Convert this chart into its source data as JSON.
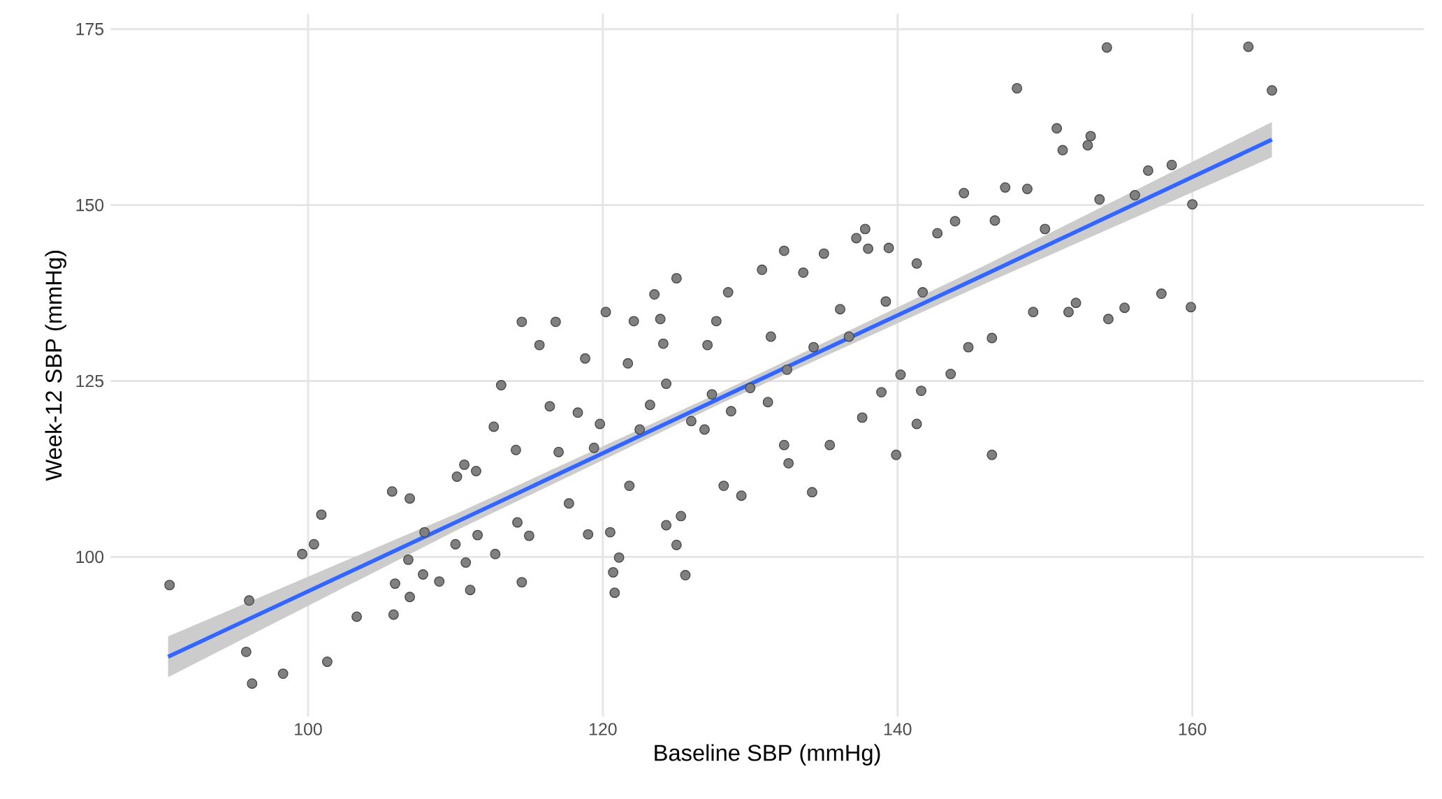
{
  "chart_data": {
    "type": "scatter",
    "xlabel": "Baseline SBP (mmHg)",
    "ylabel": "Week-12 SBP (mmHg)",
    "xlim": [
      86.6,
      175.7
    ],
    "ylim": [
      77.3,
      177.2
    ],
    "xticks": [
      100,
      120,
      140,
      160
    ],
    "yticks": [
      100,
      125,
      150,
      175
    ],
    "grid": true,
    "series": [
      {
        "marker": "circle",
        "color": "#808080",
        "x": [
          90.6,
          96.0,
          95.8,
          96.2,
          98.3,
          99.6,
          100.4,
          100.9,
          101.3,
          103.3,
          105.7,
          105.8,
          105.9,
          106.9,
          106.8,
          106.9,
          107.8,
          107.9,
          108.9,
          110.0,
          110.1,
          110.6,
          110.7,
          111.0,
          111.4,
          111.5,
          112.6,
          112.7,
          113.1,
          114.2,
          114.5,
          114.5,
          114.1,
          115.0,
          115.7,
          116.8,
          116.4,
          117.7,
          118.8,
          118.3,
          119.0,
          119.8,
          120.2,
          120.5,
          120.7,
          120.8,
          121.1,
          122.1,
          121.7,
          121.8,
          123.5,
          123.9,
          124.1,
          124.3,
          124.3,
          125.0,
          125.0,
          125.3,
          125.6,
          127.1,
          127.4,
          127.7,
          128.5,
          128.2,
          129.4,
          130.8,
          131.4,
          132.3,
          132.3,
          132.6,
          133.6,
          134.2,
          135.0,
          135.4,
          136.1,
          137.2,
          137.8,
          138.0,
          137.6,
          138.9,
          139.4,
          139.9,
          140.2,
          141.3,
          141.3,
          141.6,
          142.7,
          143.6,
          143.9,
          144.5,
          144.8,
          146.4,
          146.4,
          146.6,
          147.3,
          148.1,
          148.8,
          149.2,
          150.0,
          150.8,
          151.2,
          151.6,
          152.1,
          152.9,
          153.1,
          153.7,
          154.2,
          154.3,
          155.4,
          156.1,
          157.0,
          157.9,
          158.6,
          160.0,
          159.9,
          163.8,
          165.4,
          123.2,
          126.0,
          126.9,
          130.0,
          132.5,
          134.3,
          136.7,
          139.2,
          141.7,
          119.4,
          117.0,
          122.5,
          128.7,
          131.2
        ],
        "values": [
          96.0,
          93.8,
          86.5,
          82.0,
          83.4,
          100.4,
          101.8,
          106.0,
          85.1,
          91.5,
          109.3,
          91.8,
          96.2,
          108.3,
          99.6,
          94.3,
          97.5,
          103.5,
          96.5,
          101.8,
          111.4,
          113.1,
          99.2,
          95.3,
          112.2,
          103.1,
          118.5,
          100.4,
          124.4,
          104.9,
          133.4,
          96.4,
          115.2,
          103.0,
          130.1,
          133.4,
          121.4,
          107.6,
          128.2,
          120.5,
          103.2,
          118.9,
          134.8,
          103.5,
          97.8,
          94.9,
          99.9,
          133.5,
          127.5,
          110.1,
          137.3,
          133.8,
          130.3,
          124.6,
          104.5,
          139.6,
          101.7,
          105.8,
          97.4,
          130.1,
          123.1,
          133.5,
          137.6,
          110.1,
          108.7,
          140.8,
          131.3,
          143.5,
          115.9,
          113.3,
          140.4,
          109.2,
          143.1,
          115.9,
          135.2,
          145.3,
          146.6,
          143.8,
          119.8,
          123.4,
          143.9,
          114.5,
          125.9,
          141.7,
          118.9,
          123.6,
          146.0,
          126.0,
          147.7,
          151.7,
          129.8,
          114.5,
          131.1,
          147.8,
          152.5,
          166.6,
          152.3,
          134.8,
          146.6,
          160.9,
          157.8,
          134.8,
          136.1,
          158.5,
          159.8,
          150.8,
          172.4,
          133.8,
          135.4,
          151.4,
          154.9,
          137.4,
          155.7,
          150.1,
          135.5,
          172.5,
          166.3,
          121.6,
          119.3,
          118.1,
          124.0,
          126.6,
          129.8,
          131.3,
          136.3,
          137.6,
          115.5,
          114.9,
          118.1,
          120.7,
          122.0
        ]
      },
      {
        "type": "line",
        "color": "#3366ff",
        "x": [
          90.5,
          110,
          128,
          146,
          165.4
        ],
        "values": [
          85.8,
          104.9,
          122.6,
          140.2,
          159.3
        ],
        "lower": [
          82.9,
          103.7,
          121.8,
          138.9,
          156.8
        ],
        "upper": [
          88.7,
          106.1,
          123.4,
          141.5,
          161.8
        ]
      }
    ]
  }
}
